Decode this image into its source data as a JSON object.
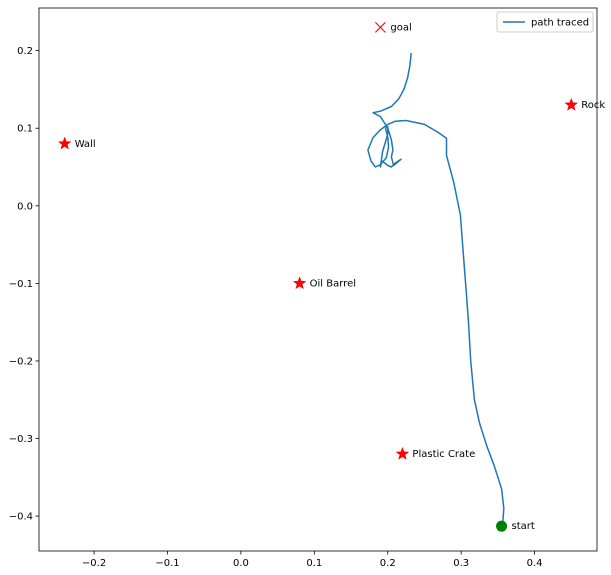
{
  "chart_data": {
    "type": "scatter",
    "xlim": [
      -0.275,
      0.485
    ],
    "ylim": [
      -0.445,
      0.255
    ],
    "x_ticks": [
      -0.2,
      -0.1,
      0.0,
      0.1,
      0.2,
      0.3,
      0.4
    ],
    "x_tick_labels": [
      "−0.2",
      "−0.1",
      "0.0",
      "0.1",
      "0.2",
      "0.3",
      "0.4"
    ],
    "y_ticks": [
      -0.4,
      -0.3,
      -0.2,
      -0.1,
      0.0,
      0.1,
      0.2
    ],
    "y_tick_labels": [
      "−0.4",
      "−0.3",
      "−0.2",
      "−0.1",
      "0.0",
      "0.1",
      "0.2"
    ],
    "grid": false,
    "legend": {
      "position": "top-right",
      "entries": [
        {
          "label": "path traced",
          "color": "#1f77b4"
        }
      ]
    },
    "path": {
      "name": "path traced",
      "color": "#1f77b4",
      "points": [
        [
          0.355,
          -0.413
        ],
        [
          0.357,
          -0.405
        ],
        [
          0.358,
          -0.39
        ],
        [
          0.355,
          -0.365
        ],
        [
          0.345,
          -0.335
        ],
        [
          0.335,
          -0.31
        ],
        [
          0.325,
          -0.28
        ],
        [
          0.318,
          -0.25
        ],
        [
          0.313,
          -0.2
        ],
        [
          0.31,
          -0.15
        ],
        [
          0.306,
          -0.1
        ],
        [
          0.302,
          -0.05
        ],
        [
          0.299,
          -0.012
        ],
        [
          0.29,
          0.03
        ],
        [
          0.28,
          0.065
        ],
        [
          0.28,
          0.087
        ],
        [
          0.268,
          0.095
        ],
        [
          0.25,
          0.105
        ],
        [
          0.225,
          0.11
        ],
        [
          0.21,
          0.109
        ],
        [
          0.2,
          0.105
        ],
        [
          0.19,
          0.098
        ],
        [
          0.18,
          0.088
        ],
        [
          0.173,
          0.072
        ],
        [
          0.177,
          0.058
        ],
        [
          0.183,
          0.05
        ],
        [
          0.19,
          0.053
        ],
        [
          0.198,
          0.062
        ],
        [
          0.201,
          0.075
        ],
        [
          0.2,
          0.088
        ],
        [
          0.197,
          0.1
        ],
        [
          0.2,
          0.102
        ],
        [
          0.2,
          0.093
        ],
        [
          0.198,
          0.086
        ],
        [
          0.193,
          0.07
        ],
        [
          0.19,
          0.05
        ],
        [
          0.192,
          0.058
        ],
        [
          0.2,
          0.052
        ],
        [
          0.205,
          0.05
        ],
        [
          0.21,
          0.055
        ],
        [
          0.218,
          0.06
        ],
        [
          0.208,
          0.052
        ],
        [
          0.205,
          0.063
        ],
        [
          0.207,
          0.072
        ],
        [
          0.205,
          0.085
        ],
        [
          0.2,
          0.1
        ],
        [
          0.19,
          0.115
        ],
        [
          0.18,
          0.12
        ],
        [
          0.19,
          0.122
        ],
        [
          0.205,
          0.128
        ],
        [
          0.215,
          0.138
        ],
        [
          0.222,
          0.15
        ],
        [
          0.227,
          0.165
        ],
        [
          0.23,
          0.18
        ],
        [
          0.232,
          0.197
        ]
      ]
    },
    "objects": [
      {
        "label": "Wall",
        "x": -0.24,
        "y": 0.08,
        "color": "#ff0000",
        "marker": "star"
      },
      {
        "label": "Rock",
        "x": 0.45,
        "y": 0.13,
        "color": "#ff0000",
        "marker": "star"
      },
      {
        "label": "Oil Barrel",
        "x": 0.08,
        "y": -0.1,
        "color": "#ff0000",
        "marker": "star"
      },
      {
        "label": "Plastic Crate",
        "x": 0.22,
        "y": -0.32,
        "color": "#ff0000",
        "marker": "star"
      }
    ],
    "goal": {
      "label": "goal",
      "x": 0.19,
      "y": 0.23,
      "color": "#ff0000",
      "marker": "x"
    },
    "start": {
      "label": "start",
      "x": 0.355,
      "y": -0.413,
      "color": "#008000",
      "marker": "circle"
    }
  }
}
